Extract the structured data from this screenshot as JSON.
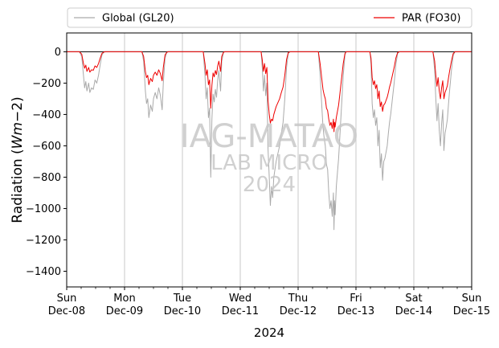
{
  "chart_data": {
    "type": "line",
    "xlabel": "2024",
    "ylabel_main": "Radiation (",
    "ylabel_unit_italic": "Wm",
    "ylabel_unit_tail": "−2)",
    "ylim": [
      -1500,
      120
    ],
    "yticks": [
      0,
      -200,
      -400,
      -600,
      -800,
      -1000,
      -1200,
      -1400
    ],
    "ytick_labels": [
      "0",
      "−200",
      "−400",
      "−600",
      "−800",
      "−1000",
      "−1200",
      "−1400"
    ],
    "xlim_days": [
      0,
      7
    ],
    "xticks": [
      {
        "day": 0,
        "weekday": "Sun",
        "date": "Dec-08"
      },
      {
        "day": 1,
        "weekday": "Mon",
        "date": "Dec-09"
      },
      {
        "day": 2,
        "weekday": "Tue",
        "date": "Dec-10"
      },
      {
        "day": 3,
        "weekday": "Wed",
        "date": "Dec-11"
      },
      {
        "day": 4,
        "weekday": "Thu",
        "date": "Dec-12"
      },
      {
        "day": 5,
        "weekday": "Fri",
        "date": "Dec-13"
      },
      {
        "day": 6,
        "weekday": "Sat",
        "date": "Dec-14"
      },
      {
        "day": 7,
        "weekday": "Sun",
        "date": "Dec-15"
      }
    ],
    "grid": "vertical",
    "zero_line": true,
    "legend": {
      "placement": "top",
      "entries": [
        {
          "label": "Global (GL20)",
          "color": "#aaaaaa"
        },
        {
          "label": "PAR (FO30)",
          "color": "#ee0000"
        }
      ]
    },
    "watermark": [
      "IAG-MATAO",
      "LAB MICRO",
      "2024"
    ],
    "series": [
      {
        "name": "Global (GL20)",
        "color": "#aaaaaa",
        "points": [
          [
            0.0,
            0
          ],
          [
            0.22,
            0
          ],
          [
            0.26,
            -30
          ],
          [
            0.29,
            -150
          ],
          [
            0.31,
            -230
          ],
          [
            0.33,
            -190
          ],
          [
            0.35,
            -250
          ],
          [
            0.38,
            -200
          ],
          [
            0.4,
            -260
          ],
          [
            0.43,
            -230
          ],
          [
            0.46,
            -240
          ],
          [
            0.49,
            -180
          ],
          [
            0.52,
            -200
          ],
          [
            0.55,
            -150
          ],
          [
            0.58,
            -80
          ],
          [
            0.61,
            -20
          ],
          [
            0.64,
            -3
          ],
          [
            0.67,
            0
          ],
          [
            1.0,
            0
          ],
          [
            1.3,
            0
          ],
          [
            1.33,
            -60
          ],
          [
            1.36,
            -250
          ],
          [
            1.38,
            -330
          ],
          [
            1.4,
            -300
          ],
          [
            1.42,
            -420
          ],
          [
            1.45,
            -340
          ],
          [
            1.48,
            -380
          ],
          [
            1.5,
            -300
          ],
          [
            1.53,
            -260
          ],
          [
            1.56,
            -300
          ],
          [
            1.59,
            -230
          ],
          [
            1.62,
            -280
          ],
          [
            1.65,
            -370
          ],
          [
            1.67,
            -200
          ],
          [
            1.7,
            -40
          ],
          [
            1.73,
            -5
          ],
          [
            1.75,
            0
          ],
          [
            2.0,
            0
          ],
          [
            2.36,
            0
          ],
          [
            2.39,
            -150
          ],
          [
            2.41,
            -300
          ],
          [
            2.43,
            -230
          ],
          [
            2.45,
            -420
          ],
          [
            2.47,
            -360
          ],
          [
            2.49,
            -800
          ],
          [
            2.51,
            -430
          ],
          [
            2.53,
            -270
          ],
          [
            2.55,
            -320
          ],
          [
            2.57,
            -240
          ],
          [
            2.59,
            -290
          ],
          [
            2.61,
            -180
          ],
          [
            2.63,
            -120
          ],
          [
            2.66,
            -250
          ],
          [
            2.68,
            -60
          ],
          [
            2.71,
            -5
          ],
          [
            2.73,
            0
          ],
          [
            3.0,
            0
          ],
          [
            3.36,
            0
          ],
          [
            3.38,
            -100
          ],
          [
            3.4,
            -250
          ],
          [
            3.42,
            -150
          ],
          [
            3.44,
            -280
          ],
          [
            3.46,
            -200
          ],
          [
            3.48,
            -620
          ],
          [
            3.5,
            -790
          ],
          [
            3.52,
            -980
          ],
          [
            3.54,
            -860
          ],
          [
            3.56,
            -930
          ],
          [
            3.58,
            -800
          ],
          [
            3.6,
            -750
          ],
          [
            3.62,
            -700
          ],
          [
            3.65,
            -650
          ],
          [
            3.68,
            -600
          ],
          [
            3.71,
            -520
          ],
          [
            3.74,
            -450
          ],
          [
            3.77,
            -300
          ],
          [
            3.8,
            -100
          ],
          [
            3.83,
            -10
          ],
          [
            3.86,
            0
          ],
          [
            4.0,
            0
          ],
          [
            4.35,
            0
          ],
          [
            4.38,
            -150
          ],
          [
            4.41,
            -350
          ],
          [
            4.43,
            -480
          ],
          [
            4.45,
            -550
          ],
          [
            4.47,
            -600
          ],
          [
            4.49,
            -720
          ],
          [
            4.51,
            -750
          ],
          [
            4.53,
            -900
          ],
          [
            4.55,
            -1000
          ],
          [
            4.57,
            -950
          ],
          [
            4.59,
            -1050
          ],
          [
            4.61,
            -900
          ],
          [
            4.62,
            -1135
          ],
          [
            4.63,
            -950
          ],
          [
            4.64,
            -1040
          ],
          [
            4.66,
            -860
          ],
          [
            4.68,
            -770
          ],
          [
            4.7,
            -680
          ],
          [
            4.72,
            -550
          ],
          [
            4.75,
            -350
          ],
          [
            4.78,
            -150
          ],
          [
            4.81,
            -20
          ],
          [
            4.83,
            0
          ],
          [
            5.0,
            0
          ],
          [
            5.24,
            0
          ],
          [
            5.26,
            -80
          ],
          [
            5.28,
            -330
          ],
          [
            5.3,
            -420
          ],
          [
            5.32,
            -370
          ],
          [
            5.34,
            -470
          ],
          [
            5.36,
            -420
          ],
          [
            5.38,
            -600
          ],
          [
            5.4,
            -500
          ],
          [
            5.42,
            -740
          ],
          [
            5.44,
            -650
          ],
          [
            5.46,
            -820
          ],
          [
            5.48,
            -700
          ],
          [
            5.5,
            -680
          ],
          [
            5.52,
            -640
          ],
          [
            5.54,
            -600
          ],
          [
            5.56,
            -520
          ],
          [
            5.58,
            -450
          ],
          [
            5.6,
            -400
          ],
          [
            5.63,
            -300
          ],
          [
            5.66,
            -200
          ],
          [
            5.69,
            -80
          ],
          [
            5.72,
            -10
          ],
          [
            5.75,
            0
          ],
          [
            6.0,
            0
          ],
          [
            6.33,
            0
          ],
          [
            6.36,
            -120
          ],
          [
            6.38,
            -300
          ],
          [
            6.4,
            -440
          ],
          [
            6.42,
            -330
          ],
          [
            6.44,
            -500
          ],
          [
            6.46,
            -600
          ],
          [
            6.48,
            -460
          ],
          [
            6.5,
            -370
          ],
          [
            6.52,
            -630
          ],
          [
            6.54,
            -520
          ],
          [
            6.56,
            -480
          ],
          [
            6.58,
            -430
          ],
          [
            6.6,
            -330
          ],
          [
            6.62,
            -240
          ],
          [
            6.65,
            -120
          ],
          [
            6.68,
            -25
          ],
          [
            6.71,
            0
          ],
          [
            7.0,
            0
          ]
        ]
      },
      {
        "name": "PAR (FO30)",
        "color": "#ee0000",
        "points": [
          [
            0.0,
            0
          ],
          [
            0.22,
            0
          ],
          [
            0.26,
            -15
          ],
          [
            0.29,
            -75
          ],
          [
            0.31,
            -105
          ],
          [
            0.33,
            -85
          ],
          [
            0.35,
            -125
          ],
          [
            0.38,
            -100
          ],
          [
            0.4,
            -130
          ],
          [
            0.43,
            -115
          ],
          [
            0.46,
            -118
          ],
          [
            0.49,
            -90
          ],
          [
            0.52,
            -100
          ],
          [
            0.55,
            -75
          ],
          [
            0.58,
            -40
          ],
          [
            0.61,
            -10
          ],
          [
            0.64,
            -2
          ],
          [
            0.67,
            0
          ],
          [
            1.0,
            0
          ],
          [
            1.3,
            0
          ],
          [
            1.33,
            -30
          ],
          [
            1.36,
            -125
          ],
          [
            1.38,
            -165
          ],
          [
            1.4,
            -150
          ],
          [
            1.42,
            -210
          ],
          [
            1.45,
            -170
          ],
          [
            1.48,
            -190
          ],
          [
            1.5,
            -150
          ],
          [
            1.53,
            -130
          ],
          [
            1.56,
            -150
          ],
          [
            1.59,
            -115
          ],
          [
            1.62,
            -140
          ],
          [
            1.65,
            -185
          ],
          [
            1.67,
            -100
          ],
          [
            1.7,
            -20
          ],
          [
            1.73,
            -3
          ],
          [
            1.75,
            0
          ],
          [
            2.0,
            0
          ],
          [
            2.36,
            0
          ],
          [
            2.39,
            -75
          ],
          [
            2.41,
            -150
          ],
          [
            2.43,
            -115
          ],
          [
            2.45,
            -210
          ],
          [
            2.47,
            -180
          ],
          [
            2.49,
            -360
          ],
          [
            2.51,
            -215
          ],
          [
            2.53,
            -135
          ],
          [
            2.55,
            -160
          ],
          [
            2.57,
            -120
          ],
          [
            2.59,
            -145
          ],
          [
            2.61,
            -90
          ],
          [
            2.63,
            -60
          ],
          [
            2.66,
            -125
          ],
          [
            2.68,
            -30
          ],
          [
            2.71,
            -3
          ],
          [
            2.73,
            0
          ],
          [
            3.0,
            0
          ],
          [
            3.36,
            0
          ],
          [
            3.38,
            -50
          ],
          [
            3.4,
            -125
          ],
          [
            3.42,
            -75
          ],
          [
            3.44,
            -140
          ],
          [
            3.46,
            -100
          ],
          [
            3.48,
            -310
          ],
          [
            3.5,
            -395
          ],
          [
            3.52,
            -455
          ],
          [
            3.54,
            -430
          ],
          [
            3.56,
            -440
          ],
          [
            3.58,
            -400
          ],
          [
            3.6,
            -375
          ],
          [
            3.62,
            -350
          ],
          [
            3.65,
            -325
          ],
          [
            3.68,
            -300
          ],
          [
            3.71,
            -260
          ],
          [
            3.74,
            -225
          ],
          [
            3.77,
            -150
          ],
          [
            3.8,
            -50
          ],
          [
            3.83,
            -5
          ],
          [
            3.86,
            0
          ],
          [
            4.0,
            0
          ],
          [
            4.35,
            0
          ],
          [
            4.38,
            -75
          ],
          [
            4.41,
            -175
          ],
          [
            4.43,
            -240
          ],
          [
            4.45,
            -275
          ],
          [
            4.47,
            -300
          ],
          [
            4.49,
            -360
          ],
          [
            4.51,
            -375
          ],
          [
            4.53,
            -430
          ],
          [
            4.55,
            -470
          ],
          [
            4.57,
            -450
          ],
          [
            4.59,
            -490
          ],
          [
            4.61,
            -430
          ],
          [
            4.62,
            -510
          ],
          [
            4.63,
            -450
          ],
          [
            4.64,
            -480
          ],
          [
            4.66,
            -420
          ],
          [
            4.68,
            -380
          ],
          [
            4.7,
            -340
          ],
          [
            4.72,
            -275
          ],
          [
            4.75,
            -175
          ],
          [
            4.78,
            -75
          ],
          [
            4.81,
            -10
          ],
          [
            4.83,
            0
          ],
          [
            5.0,
            0
          ],
          [
            5.24,
            0
          ],
          [
            5.26,
            -40
          ],
          [
            5.28,
            -165
          ],
          [
            5.3,
            -210
          ],
          [
            5.32,
            -185
          ],
          [
            5.34,
            -235
          ],
          [
            5.36,
            -210
          ],
          [
            5.38,
            -300
          ],
          [
            5.4,
            -250
          ],
          [
            5.42,
            -350
          ],
          [
            5.44,
            -320
          ],
          [
            5.46,
            -380
          ],
          [
            5.48,
            -340
          ],
          [
            5.5,
            -330
          ],
          [
            5.52,
            -310
          ],
          [
            5.54,
            -290
          ],
          [
            5.56,
            -260
          ],
          [
            5.58,
            -225
          ],
          [
            5.6,
            -200
          ],
          [
            5.63,
            -150
          ],
          [
            5.66,
            -100
          ],
          [
            5.69,
            -40
          ],
          [
            5.72,
            -5
          ],
          [
            5.75,
            0
          ],
          [
            6.0,
            0
          ],
          [
            6.33,
            0
          ],
          [
            6.36,
            -60
          ],
          [
            6.38,
            -150
          ],
          [
            6.4,
            -220
          ],
          [
            6.42,
            -165
          ],
          [
            6.44,
            -250
          ],
          [
            6.46,
            -300
          ],
          [
            6.48,
            -230
          ],
          [
            6.5,
            -185
          ],
          [
            6.52,
            -300
          ],
          [
            6.54,
            -260
          ],
          [
            6.56,
            -240
          ],
          [
            6.58,
            -215
          ],
          [
            6.6,
            -165
          ],
          [
            6.62,
            -120
          ],
          [
            6.65,
            -60
          ],
          [
            6.68,
            -12
          ],
          [
            6.71,
            0
          ],
          [
            7.0,
            0
          ]
        ]
      }
    ]
  }
}
